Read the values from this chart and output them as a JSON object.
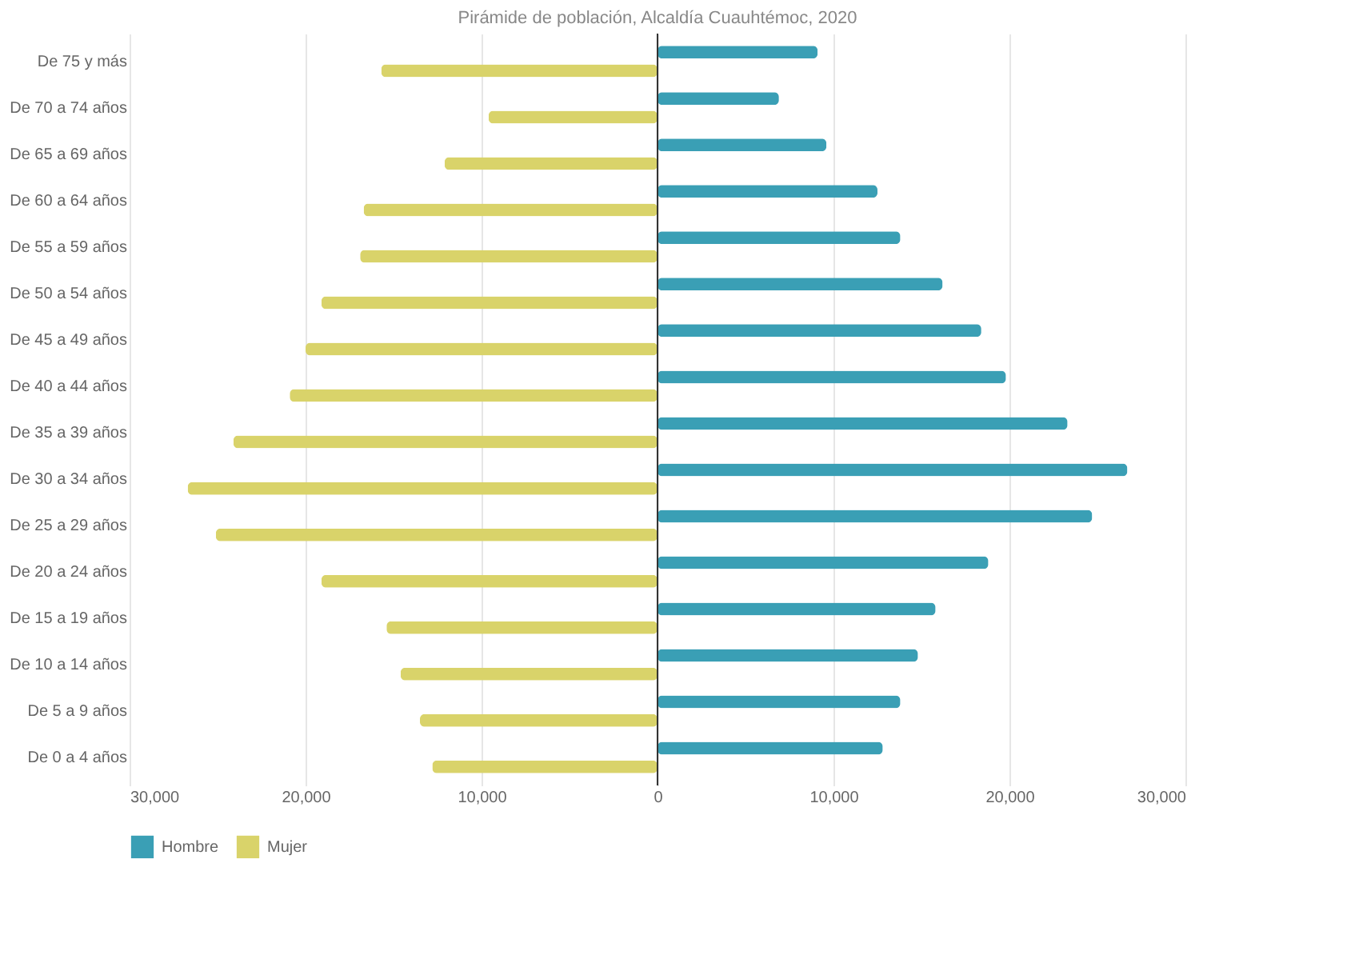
{
  "chart_data": {
    "type": "bar",
    "orientation": "horizontal",
    "title": "Pirámide de población, Alcaldía Cuauhtémoc, 2020",
    "categories": [
      "De 75 y más",
      "De 70 a 74 años",
      "De 65 a 69 años",
      "De 60 a 64 años",
      "De 55 a 59 años",
      "De 50 a 54 años",
      "De 45 a 49 años",
      "De 40 a 44 años",
      "De 35 a 39 años",
      "De 30 a 34 años",
      "De 25 a 29 años",
      "De 20 a 24 años",
      "De 15 a 19 años",
      "De 10 a 14 años",
      "De 5 a 9 años",
      "De 0 a 4 años"
    ],
    "series": [
      {
        "name": "Hombre",
        "color": "#3a9fb5",
        "values": [
          9100,
          6900,
          9600,
          12500,
          13800,
          16200,
          18400,
          19800,
          23300,
          26700,
          24700,
          18800,
          15800,
          14800,
          13800,
          12800
        ]
      },
      {
        "name": "Mujer",
        "color": "#d9d36a",
        "values": [
          -15700,
          -9600,
          -12100,
          -16700,
          -16900,
          -19100,
          -20000,
          -20900,
          -24100,
          -26700,
          -25100,
          -19100,
          -15400,
          -14600,
          -13500,
          -12800
        ]
      }
    ],
    "xlim": [
      -30000,
      30000
    ],
    "xticks": [
      {
        "value": -30000,
        "label": "30,000"
      },
      {
        "value": -20000,
        "label": "20,000"
      },
      {
        "value": -10000,
        "label": "10,000"
      },
      0,
      {
        "value": 10000,
        "label": "10,000"
      },
      {
        "value": 20000,
        "label": "20,000"
      },
      {
        "value": 30000,
        "label": "30,000"
      }
    ],
    "grid": "x",
    "legend": "bottom"
  }
}
